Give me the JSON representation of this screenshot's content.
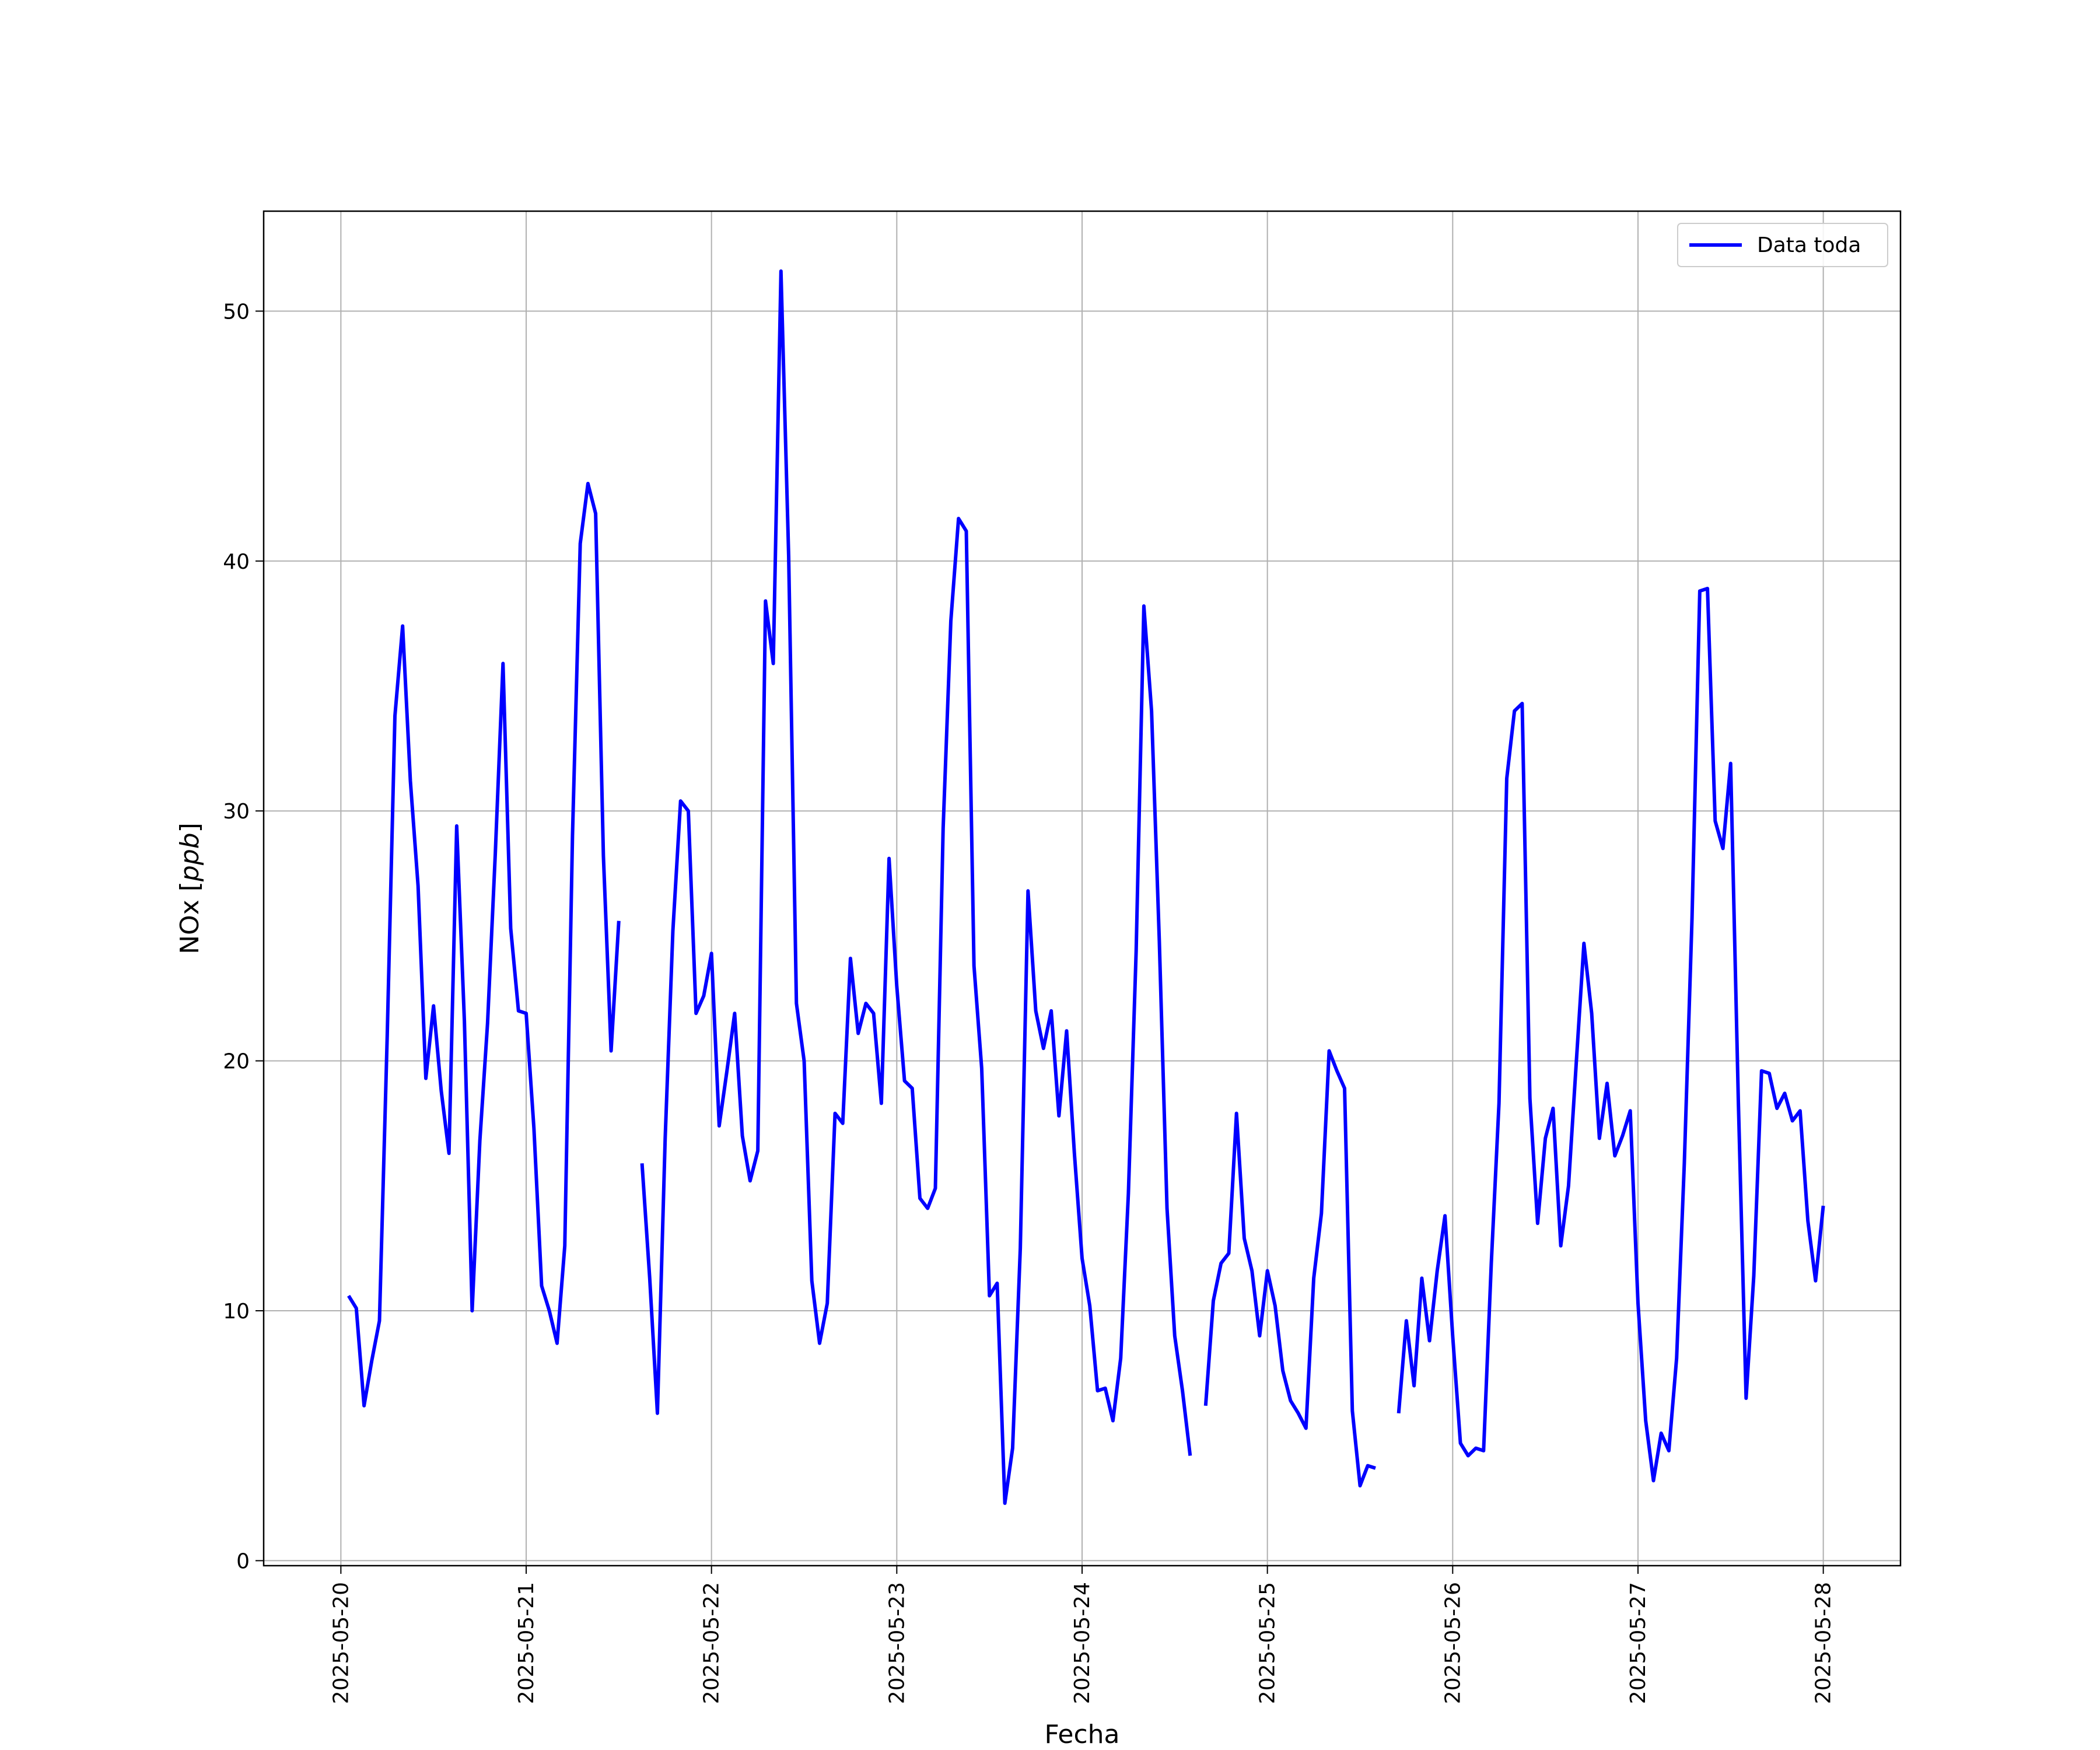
{
  "chart_data": {
    "type": "line",
    "xlabel": "Fecha",
    "ylabel": {
      "prefix": "NOx [",
      "unit": "ppb",
      "suffix": "]"
    },
    "x_ticks": [
      "2025-05-20",
      "2025-05-21",
      "2025-05-22",
      "2025-05-23",
      "2025-05-24",
      "2025-05-25",
      "2025-05-26",
      "2025-05-27",
      "2025-05-28"
    ],
    "y_ticks": [
      0,
      10,
      20,
      30,
      40,
      50
    ],
    "xlim": [
      "2025-05-19T14:00",
      "2025-05-28T10:00"
    ],
    "ylim": [
      -0.2,
      54
    ],
    "grid": true,
    "legend_position": "top-right",
    "series": [
      {
        "name": "Data toda",
        "color": "#0000ff",
        "points": [
          [
            "2025-05-20T01:00",
            10.6
          ],
          [
            "2025-05-20T02:00",
            10.1
          ],
          [
            "2025-05-20T03:00",
            6.2
          ],
          [
            "2025-05-20T04:00",
            8.0
          ],
          [
            "2025-05-20T05:00",
            9.6
          ],
          [
            "2025-05-20T06:00",
            21.0
          ],
          [
            "2025-05-20T07:00",
            33.8
          ],
          [
            "2025-05-20T08:00",
            37.4
          ],
          [
            "2025-05-20T09:00",
            31.2
          ],
          [
            "2025-05-20T10:00",
            27.0
          ],
          [
            "2025-05-20T11:00",
            19.3
          ],
          [
            "2025-05-20T12:00",
            22.2
          ],
          [
            "2025-05-20T13:00",
            18.8
          ],
          [
            "2025-05-20T14:00",
            16.3
          ],
          [
            "2025-05-20T15:00",
            29.4
          ],
          [
            "2025-05-20T16:00",
            21.6
          ],
          [
            "2025-05-20T17:00",
            10.0
          ],
          [
            "2025-05-20T18:00",
            16.8
          ],
          [
            "2025-05-20T19:00",
            21.5
          ],
          [
            "2025-05-20T20:00",
            28.3
          ],
          [
            "2025-05-20T21:00",
            35.9
          ],
          [
            "2025-05-20T22:00",
            25.3
          ],
          [
            "2025-05-20T23:00",
            22.0
          ],
          [
            "2025-05-21T00:00",
            21.9
          ],
          [
            "2025-05-21T01:00",
            17.3
          ],
          [
            "2025-05-21T02:00",
            11.0
          ],
          [
            "2025-05-21T03:00",
            10.0
          ],
          [
            "2025-05-21T04:00",
            8.7
          ],
          [
            "2025-05-21T05:00",
            12.6
          ],
          [
            "2025-05-21T06:00",
            29.0
          ],
          [
            "2025-05-21T07:00",
            40.7
          ],
          [
            "2025-05-21T08:00",
            43.1
          ],
          [
            "2025-05-21T09:00",
            41.9
          ],
          [
            "2025-05-21T10:00",
            28.2
          ],
          [
            "2025-05-21T11:00",
            20.4
          ],
          [
            "2025-05-21T12:00",
            25.6
          ],
          null,
          [
            "2025-05-21T15:00",
            15.9
          ],
          [
            "2025-05-21T16:00",
            11.3
          ],
          [
            "2025-05-21T17:00",
            5.9
          ],
          [
            "2025-05-21T18:00",
            16.9
          ],
          [
            "2025-05-21T19:00",
            25.2
          ],
          [
            "2025-05-21T20:00",
            30.4
          ],
          [
            "2025-05-21T21:00",
            30.0
          ],
          [
            "2025-05-21T22:00",
            21.9
          ],
          [
            "2025-05-21T23:00",
            22.6
          ],
          [
            "2025-05-22T00:00",
            24.3
          ],
          [
            "2025-05-22T01:00",
            17.4
          ],
          [
            "2025-05-22T02:00",
            19.6
          ],
          [
            "2025-05-22T03:00",
            21.9
          ],
          [
            "2025-05-22T04:00",
            17.0
          ],
          [
            "2025-05-22T05:00",
            15.2
          ],
          [
            "2025-05-22T06:00",
            16.4
          ],
          [
            "2025-05-22T07:00",
            38.4
          ],
          [
            "2025-05-22T08:00",
            35.9
          ],
          [
            "2025-05-22T09:00",
            51.6
          ],
          [
            "2025-05-22T10:00",
            40.2
          ],
          [
            "2025-05-22T11:00",
            22.3
          ],
          [
            "2025-05-22T12:00",
            20.0
          ],
          [
            "2025-05-22T13:00",
            11.2
          ],
          [
            "2025-05-22T14:00",
            8.7
          ],
          [
            "2025-05-22T15:00",
            10.3
          ],
          [
            "2025-05-22T16:00",
            17.9
          ],
          [
            "2025-05-22T17:00",
            17.5
          ],
          [
            "2025-05-22T18:00",
            24.1
          ],
          [
            "2025-05-22T19:00",
            21.1
          ],
          [
            "2025-05-22T20:00",
            22.3
          ],
          [
            "2025-05-22T21:00",
            21.9
          ],
          [
            "2025-05-22T22:00",
            18.3
          ],
          [
            "2025-05-22T23:00",
            28.1
          ],
          [
            "2025-05-23T00:00",
            23.0
          ],
          [
            "2025-05-23T01:00",
            19.2
          ],
          [
            "2025-05-23T02:00",
            18.9
          ],
          [
            "2025-05-23T03:00",
            14.5
          ],
          [
            "2025-05-23T04:00",
            14.1
          ],
          [
            "2025-05-23T05:00",
            14.9
          ],
          [
            "2025-05-23T06:00",
            29.3
          ],
          [
            "2025-05-23T07:00",
            37.6
          ],
          [
            "2025-05-23T08:00",
            41.7
          ],
          [
            "2025-05-23T09:00",
            41.2
          ],
          [
            "2025-05-23T10:00",
            23.8
          ],
          [
            "2025-05-23T11:00",
            19.7
          ],
          [
            "2025-05-23T12:00",
            10.6
          ],
          [
            "2025-05-23T13:00",
            11.1
          ],
          [
            "2025-05-23T14:00",
            2.3
          ],
          [
            "2025-05-23T15:00",
            4.5
          ],
          [
            "2025-05-23T16:00",
            12.5
          ],
          [
            "2025-05-23T17:00",
            26.8
          ],
          [
            "2025-05-23T18:00",
            22.0
          ],
          [
            "2025-05-23T19:00",
            20.5
          ],
          [
            "2025-05-23T20:00",
            22.0
          ],
          [
            "2025-05-23T21:00",
            17.8
          ],
          [
            "2025-05-23T22:00",
            21.2
          ],
          [
            "2025-05-23T23:00",
            16.3
          ],
          [
            "2025-05-24T00:00",
            12.1
          ],
          [
            "2025-05-24T01:00",
            10.2
          ],
          [
            "2025-05-24T02:00",
            6.8
          ],
          [
            "2025-05-24T03:00",
            6.9
          ],
          [
            "2025-05-24T04:00",
            5.6
          ],
          [
            "2025-05-24T05:00",
            8.1
          ],
          [
            "2025-05-24T06:00",
            14.7
          ],
          [
            "2025-05-24T07:00",
            24.4
          ],
          [
            "2025-05-24T08:00",
            38.2
          ],
          [
            "2025-05-24T09:00",
            34.0
          ],
          [
            "2025-05-24T10:00",
            24.8
          ],
          [
            "2025-05-24T11:00",
            14.1
          ],
          [
            "2025-05-24T12:00",
            9.0
          ],
          [
            "2025-05-24T13:00",
            6.8
          ],
          [
            "2025-05-24T14:00",
            4.2
          ],
          null,
          [
            "2025-05-24T16:00",
            6.2
          ],
          [
            "2025-05-24T17:00",
            10.4
          ],
          [
            "2025-05-24T18:00",
            11.9
          ],
          [
            "2025-05-24T19:00",
            12.3
          ],
          [
            "2025-05-24T20:00",
            17.9
          ],
          [
            "2025-05-24T21:00",
            12.9
          ],
          [
            "2025-05-24T22:00",
            11.6
          ],
          [
            "2025-05-24T23:00",
            9.0
          ],
          [
            "2025-05-25T00:00",
            11.6
          ],
          [
            "2025-05-25T01:00",
            10.2
          ],
          [
            "2025-05-25T02:00",
            7.6
          ],
          [
            "2025-05-25T03:00",
            6.4
          ],
          [
            "2025-05-25T04:00",
            5.9
          ],
          [
            "2025-05-25T05:00",
            5.3
          ],
          [
            "2025-05-25T06:00",
            11.3
          ],
          [
            "2025-05-25T07:00",
            13.9
          ],
          [
            "2025-05-25T08:00",
            20.4
          ],
          [
            "2025-05-25T09:00",
            19.6
          ],
          [
            "2025-05-25T10:00",
            18.9
          ],
          [
            "2025-05-25T11:00",
            6.0
          ],
          [
            "2025-05-25T12:00",
            3.0
          ],
          [
            "2025-05-25T13:00",
            3.8
          ],
          [
            "2025-05-25T14:00",
            3.7
          ],
          null,
          [
            "2025-05-25T17:00",
            5.9
          ],
          [
            "2025-05-25T18:00",
            9.6
          ],
          [
            "2025-05-25T19:00",
            7.0
          ],
          [
            "2025-05-25T20:00",
            11.3
          ],
          [
            "2025-05-25T21:00",
            8.8
          ],
          [
            "2025-05-25T22:00",
            11.6
          ],
          [
            "2025-05-25T23:00",
            13.8
          ],
          [
            "2025-05-26T00:00",
            9.0
          ],
          [
            "2025-05-26T01:00",
            4.7
          ],
          [
            "2025-05-26T02:00",
            4.2
          ],
          [
            "2025-05-26T03:00",
            4.5
          ],
          [
            "2025-05-26T04:00",
            4.4
          ],
          [
            "2025-05-26T05:00",
            11.9
          ],
          [
            "2025-05-26T06:00",
            18.3
          ],
          [
            "2025-05-26T07:00",
            31.3
          ],
          [
            "2025-05-26T08:00",
            34.0
          ],
          [
            "2025-05-26T09:00",
            34.3
          ],
          [
            "2025-05-26T10:00",
            18.5
          ],
          [
            "2025-05-26T11:00",
            13.5
          ],
          [
            "2025-05-26T12:00",
            16.9
          ],
          [
            "2025-05-26T13:00",
            18.1
          ],
          [
            "2025-05-26T14:00",
            12.6
          ],
          [
            "2025-05-26T15:00",
            15.0
          ],
          [
            "2025-05-26T16:00",
            19.9
          ],
          [
            "2025-05-26T17:00",
            24.7
          ],
          [
            "2025-05-26T18:00",
            21.9
          ],
          [
            "2025-05-26T19:00",
            16.9
          ],
          [
            "2025-05-26T20:00",
            19.1
          ],
          [
            "2025-05-26T21:00",
            16.2
          ],
          [
            "2025-05-26T22:00",
            17.0
          ],
          [
            "2025-05-26T23:00",
            18.0
          ],
          [
            "2025-05-27T00:00",
            10.3
          ],
          [
            "2025-05-27T01:00",
            5.6
          ],
          [
            "2025-05-27T02:00",
            3.2
          ],
          [
            "2025-05-27T03:00",
            5.1
          ],
          [
            "2025-05-27T04:00",
            4.4
          ],
          [
            "2025-05-27T05:00",
            8.1
          ],
          [
            "2025-05-27T06:00",
            15.9
          ],
          [
            "2025-05-27T07:00",
            25.7
          ],
          [
            "2025-05-27T08:00",
            38.8
          ],
          [
            "2025-05-27T09:00",
            38.9
          ],
          [
            "2025-05-27T10:00",
            29.6
          ],
          [
            "2025-05-27T11:00",
            28.5
          ],
          [
            "2025-05-27T12:00",
            31.9
          ],
          [
            "2025-05-27T13:00",
            18.4
          ],
          [
            "2025-05-27T14:00",
            6.5
          ],
          [
            "2025-05-27T15:00",
            11.4
          ],
          [
            "2025-05-27T16:00",
            19.6
          ],
          [
            "2025-05-27T17:00",
            19.5
          ],
          [
            "2025-05-27T18:00",
            18.1
          ],
          [
            "2025-05-27T19:00",
            18.7
          ],
          [
            "2025-05-27T20:00",
            17.6
          ],
          [
            "2025-05-27T21:00",
            18.0
          ],
          [
            "2025-05-27T22:00",
            13.6
          ],
          [
            "2025-05-27T23:00",
            11.2
          ],
          [
            "2025-05-28T00:00",
            14.2
          ]
        ]
      }
    ]
  }
}
